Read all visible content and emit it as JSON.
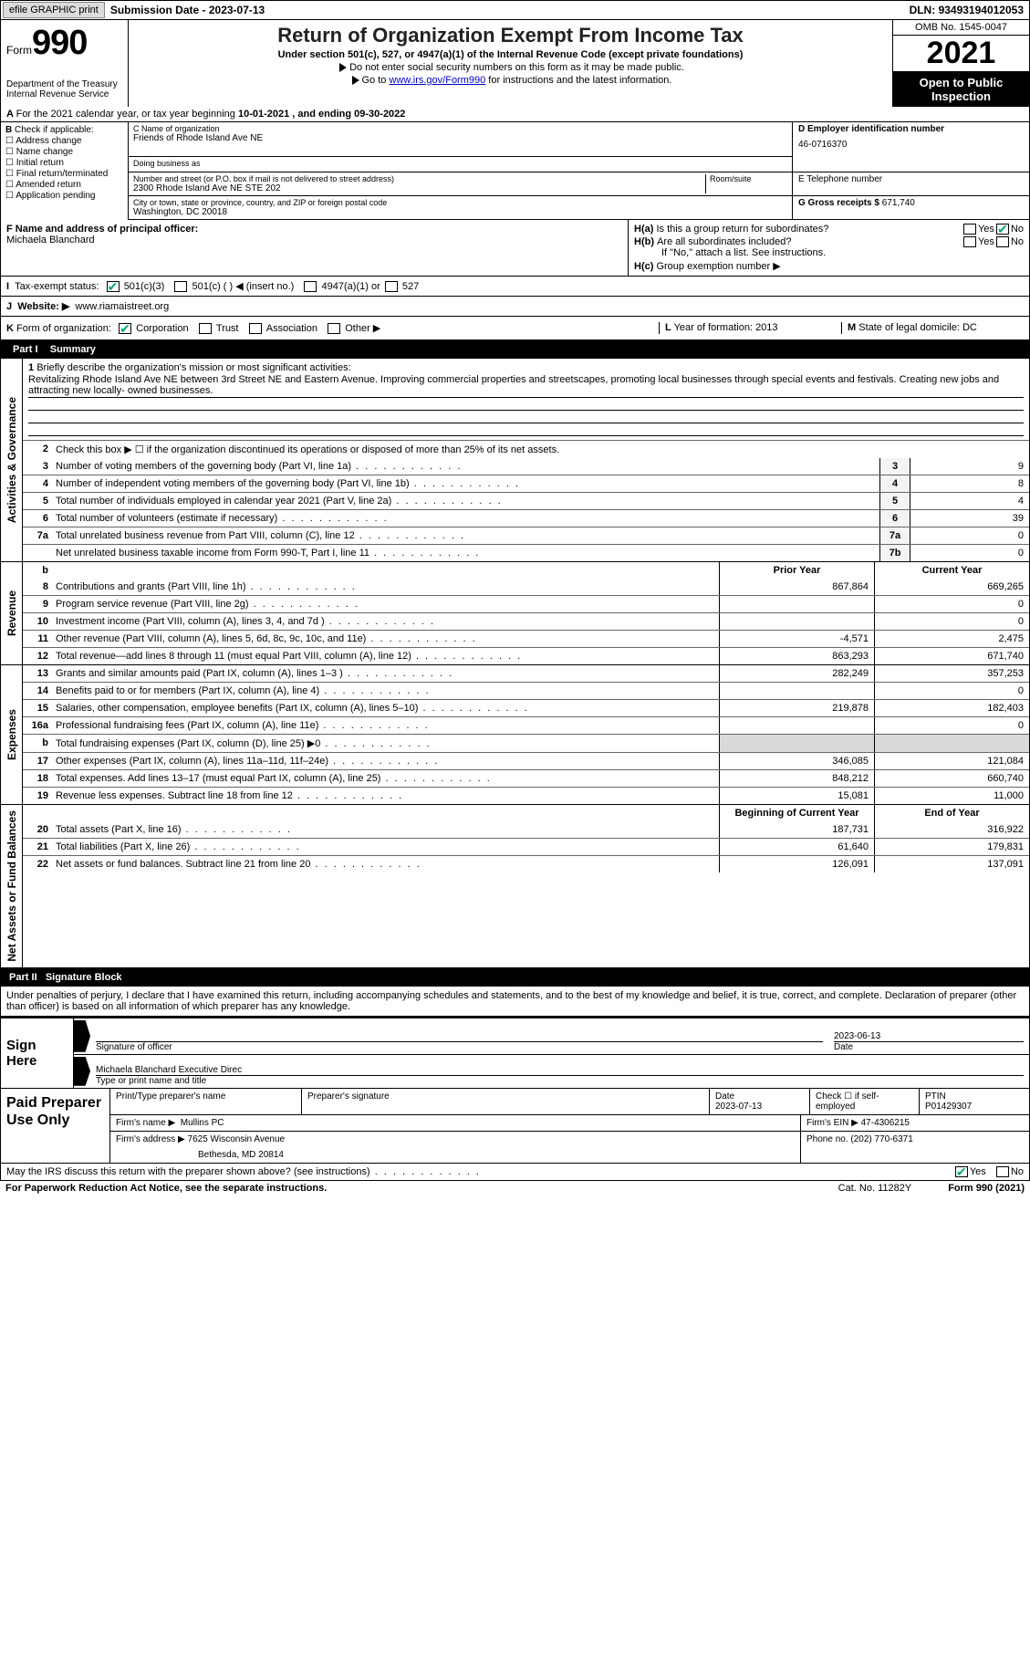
{
  "topbar": {
    "efile_btn": "efile GRAPHIC print",
    "sub_label": "Submission Date - ",
    "sub_date": "2023-07-13",
    "dln_label": "DLN: ",
    "dln": "93493194012053"
  },
  "header": {
    "form_word": "Form",
    "form_no": "990",
    "dept": "Department of the Treasury\nInternal Revenue Service",
    "title": "Return of Organization Exempt From Income Tax",
    "subtitle": "Under section 501(c), 527, or 4947(a)(1) of the Internal Revenue Code (except private foundations)",
    "note1": "Do not enter social security numbers on this form as it may be made public.",
    "note2_pre": "Go to ",
    "note2_link": "www.irs.gov/Form990",
    "note2_post": " for instructions and the latest information.",
    "omb": "OMB No. 1545-0047",
    "year": "2021",
    "otp": "Open to Public Inspection"
  },
  "A": {
    "text_pre": "For the 2021 calendar year, or tax year beginning ",
    "begin": "10-01-2021",
    "mid": "   , and ending ",
    "end": "09-30-2022"
  },
  "B": {
    "label": "Check if applicable:",
    "items": [
      "Address change",
      "Name change",
      "Initial return",
      "Final return/terminated",
      "Amended return",
      "Application pending"
    ]
  },
  "C": {
    "name_lbl": "C Name of organization",
    "name": "Friends of Rhode Island Ave NE",
    "dba_lbl": "Doing business as",
    "dba": "",
    "street_lbl": "Number and street (or P.O. box if mail is not delivered to street address)",
    "room_lbl": "Room/suite",
    "street": "2300 Rhode Island Ave NE STE 202",
    "city_lbl": "City or town, state or province, country, and ZIP or foreign postal code",
    "city": "Washington, DC  20018"
  },
  "D": {
    "lbl": "D Employer identification number",
    "val": "46-0716370"
  },
  "E": {
    "lbl": "E Telephone number",
    "val": ""
  },
  "G": {
    "lbl": "G Gross receipts $",
    "val": "671,740"
  },
  "F": {
    "lbl": "F  Name and address of principal officer:",
    "name": "Michaela Blanchard"
  },
  "H": {
    "a": "Is this a group return for subordinates?",
    "b": "Are all subordinates included?",
    "b_note": "If \"No,\" attach a list. See instructions.",
    "c": "Group exemption number ▶",
    "yes": "Yes",
    "no": "No",
    "a_checked": "no"
  },
  "I": {
    "lbl": "Tax-exempt status:",
    "o1": "501(c)(3)",
    "o2": "501(c) (  ) ◀ (insert no.)",
    "o3": "4947(a)(1) or",
    "o4": "527",
    "checked": "o1"
  },
  "J": {
    "lbl": "Website: ▶",
    "val": "www.riamaistreet.org"
  },
  "K": {
    "lbl": "Form of organization:",
    "opts": [
      "Corporation",
      "Trust",
      "Association",
      "Other ▶"
    ],
    "checked": 0
  },
  "L": {
    "lbl": "Year of formation:",
    "val": "2013"
  },
  "M": {
    "lbl": "State of legal domicile:",
    "val": "DC"
  },
  "part1": {
    "title": "Summary",
    "q1_lbl": "Briefly describe the organization's mission or most significant activities:",
    "q1_text": "Revitalizing Rhode Island Ave NE between 3rd Street NE and Eastern Avenue. Improving commercial properties and streetscapes, promoting local businesses through special events and festivals. Creating new jobs and attracting new locally- owned businesses.",
    "q2": "Check this box ▶ ☐ if the organization discontinued its operations or disposed of more than 25% of its net assets.",
    "vtab_ag": "Activities & Governance",
    "vtab_rev": "Revenue",
    "vtab_exp": "Expenses",
    "vtab_na": "Net Assets or Fund Balances",
    "rows_ag": [
      {
        "n": "3",
        "t": "Number of voting members of the governing body (Part VI, line 1a)",
        "box": "3",
        "v": "9"
      },
      {
        "n": "4",
        "t": "Number of independent voting members of the governing body (Part VI, line 1b)",
        "box": "4",
        "v": "8"
      },
      {
        "n": "5",
        "t": "Total number of individuals employed in calendar year 2021 (Part V, line 2a)",
        "box": "5",
        "v": "4"
      },
      {
        "n": "6",
        "t": "Total number of volunteers (estimate if necessary)",
        "box": "6",
        "v": "39"
      },
      {
        "n": "7a",
        "t": "Total unrelated business revenue from Part VIII, column (C), line 12",
        "box": "7a",
        "v": "0"
      },
      {
        "n": "",
        "t": "Net unrelated business taxable income from Form 990-T, Part I, line 11",
        "box": "7b",
        "v": "0"
      }
    ],
    "hdr_prior": "Prior Year",
    "hdr_curr": "Current Year",
    "rows_rev": [
      {
        "n": "8",
        "t": "Contributions and grants (Part VIII, line 1h)",
        "p": "867,864",
        "c": "669,265"
      },
      {
        "n": "9",
        "t": "Program service revenue (Part VIII, line 2g)",
        "p": "",
        "c": "0"
      },
      {
        "n": "10",
        "t": "Investment income (Part VIII, column (A), lines 3, 4, and 7d )",
        "p": "",
        "c": "0"
      },
      {
        "n": "11",
        "t": "Other revenue (Part VIII, column (A), lines 5, 6d, 8c, 9c, 10c, and 11e)",
        "p": "-4,571",
        "c": "2,475"
      },
      {
        "n": "12",
        "t": "Total revenue—add lines 8 through 11 (must equal Part VIII, column (A), line 12)",
        "p": "863,293",
        "c": "671,740"
      }
    ],
    "rows_exp": [
      {
        "n": "13",
        "t": "Grants and similar amounts paid (Part IX, column (A), lines 1–3 )",
        "p": "282,249",
        "c": "357,253"
      },
      {
        "n": "14",
        "t": "Benefits paid to or for members (Part IX, column (A), line 4)",
        "p": "",
        "c": "0"
      },
      {
        "n": "15",
        "t": "Salaries, other compensation, employee benefits (Part IX, column (A), lines 5–10)",
        "p": "219,878",
        "c": "182,403"
      },
      {
        "n": "16a",
        "t": "Professional fundraising fees (Part IX, column (A), line 11e)",
        "p": "",
        "c": "0"
      },
      {
        "n": "b",
        "t": "Total fundraising expenses (Part IX, column (D), line 25) ▶0",
        "p": "__gray__",
        "c": "__gray__"
      },
      {
        "n": "17",
        "t": "Other expenses (Part IX, column (A), lines 11a–11d, 11f–24e)",
        "p": "346,085",
        "c": "121,084"
      },
      {
        "n": "18",
        "t": "Total expenses. Add lines 13–17 (must equal Part IX, column (A), line 25)",
        "p": "848,212",
        "c": "660,740"
      },
      {
        "n": "19",
        "t": "Revenue less expenses. Subtract line 18 from line 12",
        "p": "15,081",
        "c": "11,000"
      }
    ],
    "hdr_boy": "Beginning of Current Year",
    "hdr_eoy": "End of Year",
    "rows_na": [
      {
        "n": "20",
        "t": "Total assets (Part X, line 16)",
        "p": "187,731",
        "c": "316,922"
      },
      {
        "n": "21",
        "t": "Total liabilities (Part X, line 26)",
        "p": "61,640",
        "c": "179,831"
      },
      {
        "n": "22",
        "t": "Net assets or fund balances. Subtract line 21 from line 20",
        "p": "126,091",
        "c": "137,091"
      }
    ]
  },
  "part2": {
    "title": "Signature Block",
    "decl": "Under penalties of perjury, I declare that I have examined this return, including accompanying schedules and statements, and to the best of my knowledge and belief, it is true, correct, and complete. Declaration of preparer (other than officer) is based on all information of which preparer has any knowledge."
  },
  "sign": {
    "here": "Sign Here",
    "sig_lbl": "Signature of officer",
    "date_lbl": "Date",
    "date": "2023-06-13",
    "name": "Michaela Blanchard  Executive Direc",
    "name_lbl": "Type or print name and title"
  },
  "paid": {
    "title": "Paid Preparer Use Only",
    "prep_name_lbl": "Print/Type preparer's name",
    "prep_sig_lbl": "Preparer's signature",
    "date_lbl": "Date",
    "date": "2023-07-13",
    "self_lbl": "Check ☐ if self-employed",
    "ptin_lbl": "PTIN",
    "ptin": "P01429307",
    "firm_name_lbl": "Firm's name   ▶",
    "firm_name": "Mullins PC",
    "firm_ein_lbl": "Firm's EIN ▶",
    "firm_ein": "47-4306215",
    "firm_addr_lbl": "Firm's address ▶",
    "firm_addr1": "7625 Wisconsin Avenue",
    "firm_addr2": "Bethesda, MD  20814",
    "phone_lbl": "Phone no.",
    "phone": "(202) 770-6371"
  },
  "discuss": {
    "q": "May the IRS discuss this return with the preparer shown above? (see instructions)",
    "yes": "Yes",
    "no": "No",
    "checked": "yes"
  },
  "footer": {
    "pra": "For Paperwork Reduction Act Notice, see the separate instructions.",
    "cat": "Cat. No. 11282Y",
    "form": "Form 990 (2021)"
  },
  "colors": {
    "black": "#000000",
    "link": "#0000cc",
    "check": "#00aa66",
    "gray_cell": "#d9d9d9",
    "btn_bg": "#dcdcdc"
  }
}
